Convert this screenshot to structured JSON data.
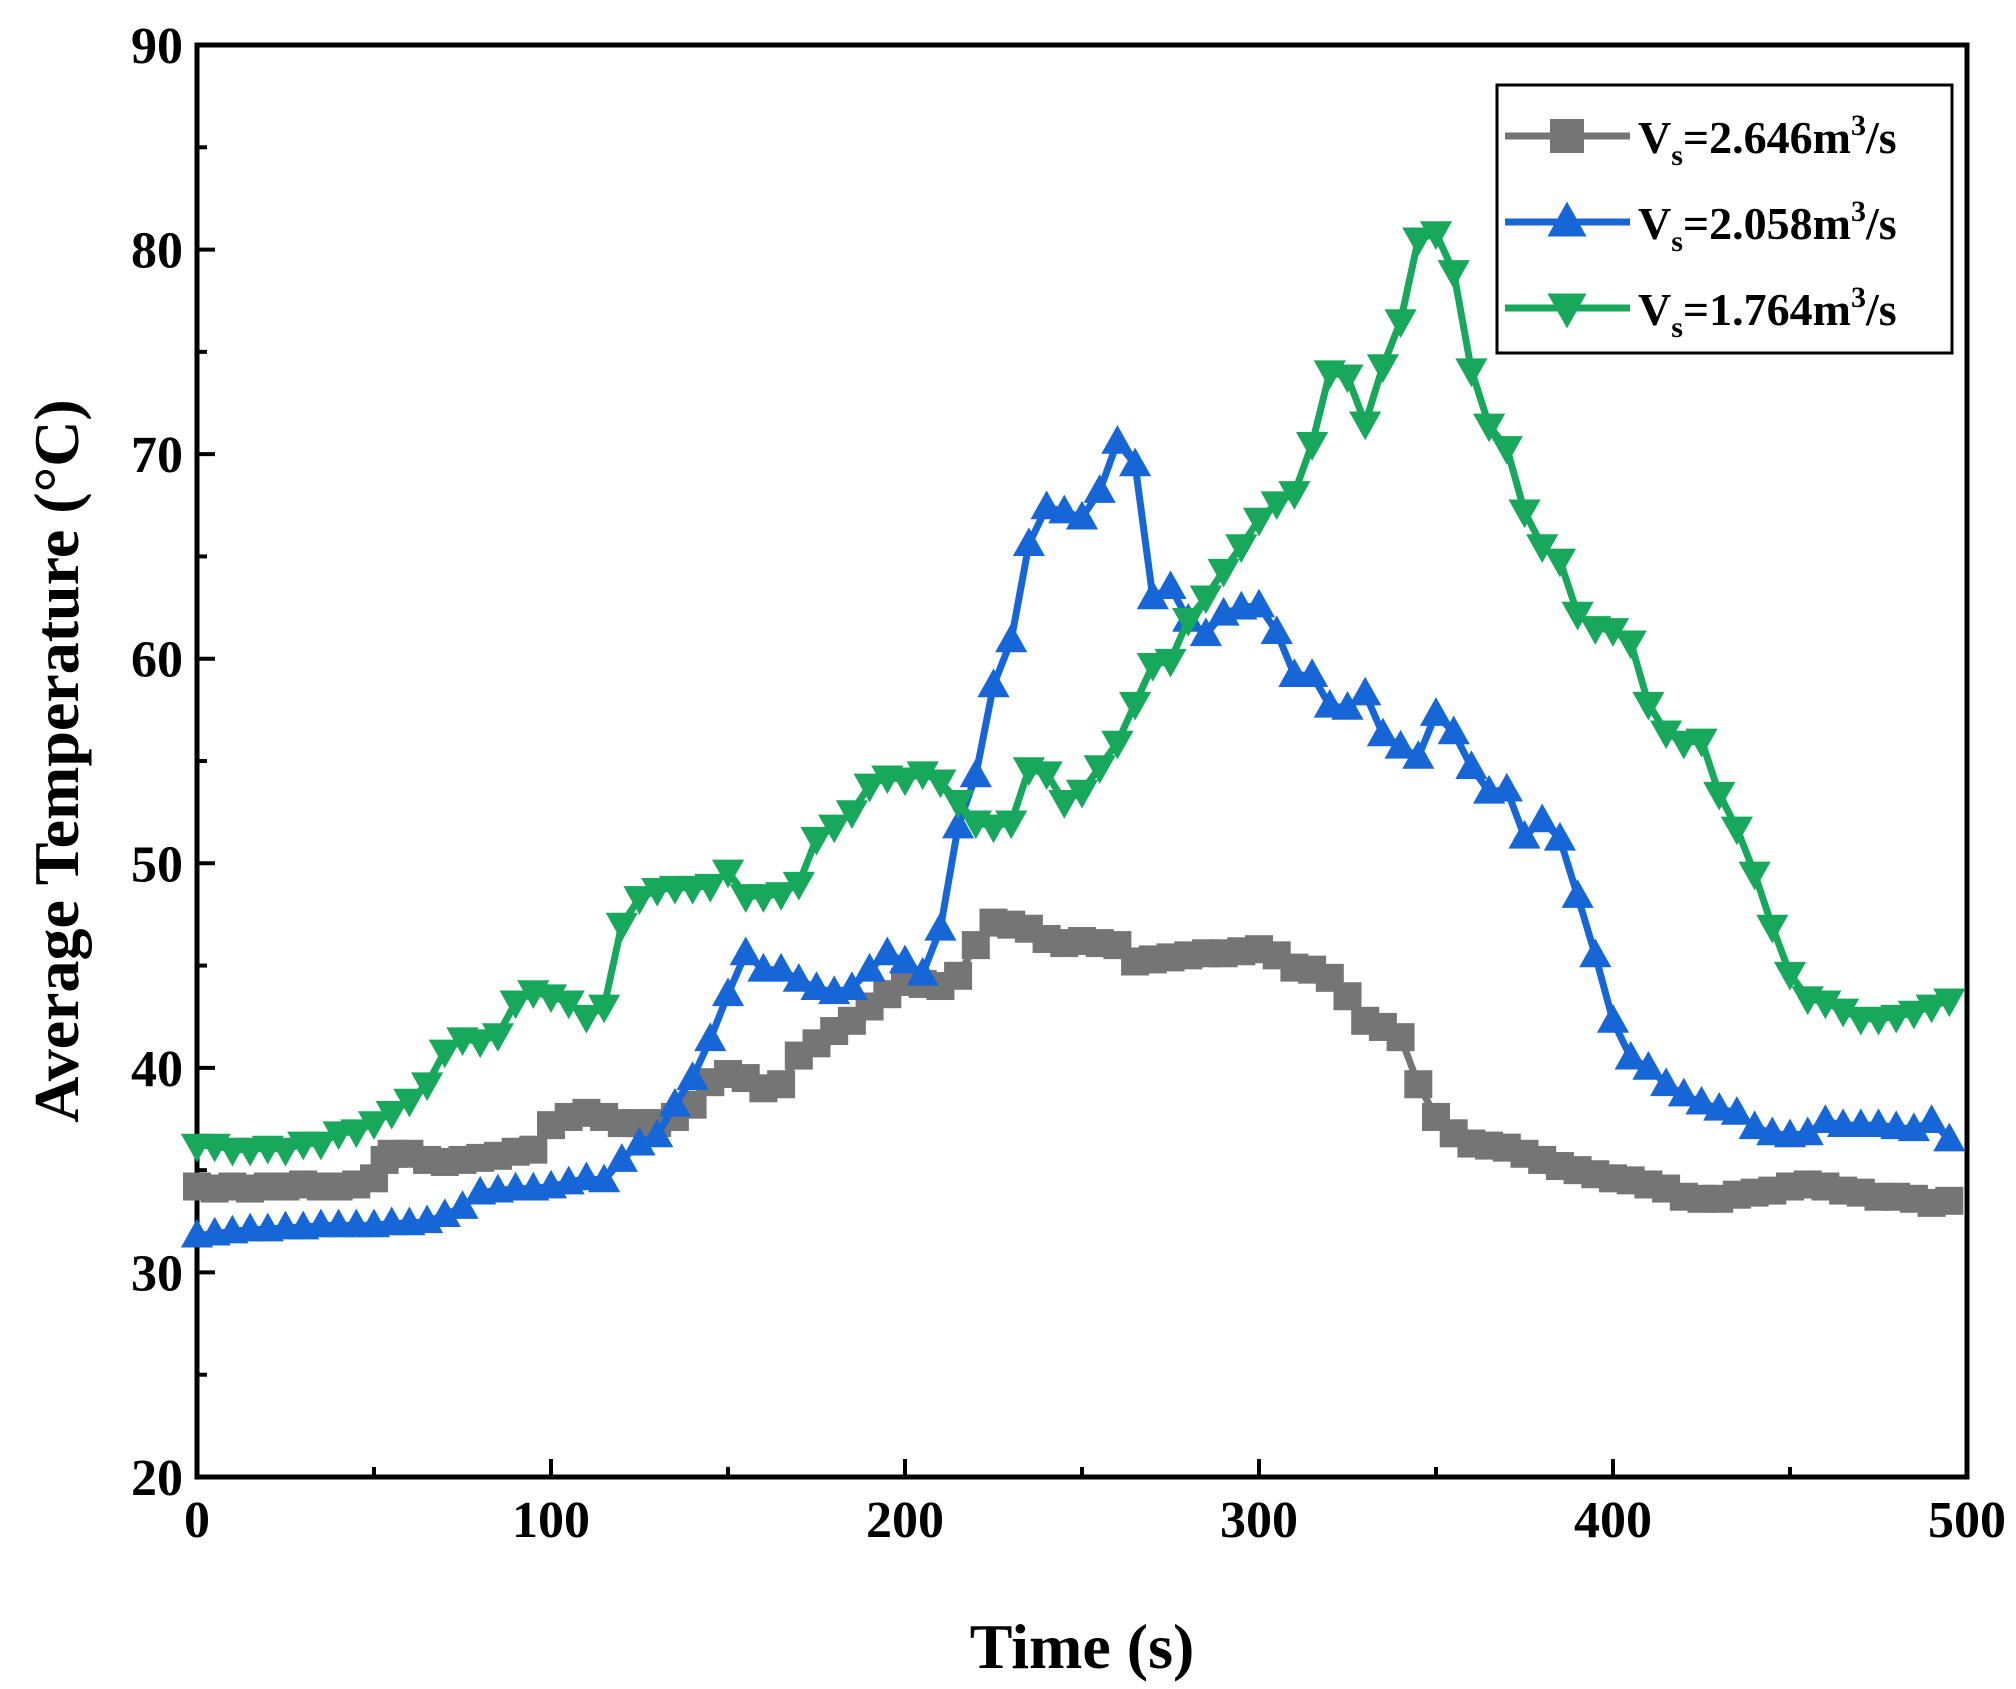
{
  "chart_data": {
    "type": "line",
    "xlabel": "Time (s)",
    "ylabel": "Average Temperature (°C)",
    "xlim": [
      0,
      500
    ],
    "ylim": [
      20,
      90
    ],
    "xticks": [
      0,
      100,
      200,
      300,
      400,
      500
    ],
    "yticks": [
      20,
      30,
      40,
      50,
      60,
      70,
      80,
      90
    ],
    "grid": false,
    "legend_position": "top-right",
    "series": [
      {
        "name_main": "V",
        "name_sub": "s",
        "name_value": "=2.646m",
        "name_sup": "3",
        "name_tail": "/s",
        "color": "#757575",
        "marker": "square",
        "points": [
          [
            0,
            34.2
          ],
          [
            5,
            34.1
          ],
          [
            10,
            34.2
          ],
          [
            15,
            34.1
          ],
          [
            20,
            34.2
          ],
          [
            25,
            34.2
          ],
          [
            30,
            34.3
          ],
          [
            35,
            34.2
          ],
          [
            40,
            34.2
          ],
          [
            45,
            34.3
          ],
          [
            50,
            34.6
          ],
          [
            53,
            35.5
          ],
          [
            55,
            35.8
          ],
          [
            60,
            35.8
          ],
          [
            65,
            35.5
          ],
          [
            70,
            35.4
          ],
          [
            75,
            35.5
          ],
          [
            80,
            35.6
          ],
          [
            85,
            35.7
          ],
          [
            90,
            35.9
          ],
          [
            95,
            36.0
          ],
          [
            100,
            37.2
          ],
          [
            105,
            37.6
          ],
          [
            110,
            37.8
          ],
          [
            115,
            37.6
          ],
          [
            120,
            37.3
          ],
          [
            125,
            37.3
          ],
          [
            130,
            37.3
          ],
          [
            135,
            37.6
          ],
          [
            140,
            38.2
          ],
          [
            145,
            39.3
          ],
          [
            150,
            39.7
          ],
          [
            155,
            39.5
          ],
          [
            160,
            39.0
          ],
          [
            165,
            39.2
          ],
          [
            170,
            40.6
          ],
          [
            175,
            41.2
          ],
          [
            180,
            41.8
          ],
          [
            185,
            42.3
          ],
          [
            190,
            43.0
          ],
          [
            195,
            43.6
          ],
          [
            200,
            44.2
          ],
          [
            205,
            44.1
          ],
          [
            210,
            44.0
          ],
          [
            215,
            44.5
          ],
          [
            220,
            46.0
          ],
          [
            225,
            47.1
          ],
          [
            230,
            47.0
          ],
          [
            235,
            46.8
          ],
          [
            240,
            46.3
          ],
          [
            245,
            46.1
          ],
          [
            250,
            46.2
          ],
          [
            255,
            46.1
          ],
          [
            260,
            46.0
          ],
          [
            265,
            45.2
          ],
          [
            270,
            45.3
          ],
          [
            275,
            45.4
          ],
          [
            280,
            45.5
          ],
          [
            285,
            45.6
          ],
          [
            290,
            45.6
          ],
          [
            295,
            45.7
          ],
          [
            300,
            45.8
          ],
          [
            305,
            45.5
          ],
          [
            310,
            44.9
          ],
          [
            315,
            44.8
          ],
          [
            320,
            44.4
          ],
          [
            325,
            43.5
          ],
          [
            330,
            42.3
          ],
          [
            335,
            42.0
          ],
          [
            340,
            41.5
          ],
          [
            345,
            39.2
          ],
          [
            350,
            37.6
          ],
          [
            355,
            36.8
          ],
          [
            360,
            36.3
          ],
          [
            365,
            36.2
          ],
          [
            370,
            36.1
          ],
          [
            375,
            35.8
          ],
          [
            380,
            35.5
          ],
          [
            385,
            35.2
          ],
          [
            390,
            35.0
          ],
          [
            395,
            34.8
          ],
          [
            400,
            34.6
          ],
          [
            405,
            34.5
          ],
          [
            410,
            34.3
          ],
          [
            415,
            34.1
          ],
          [
            420,
            33.7
          ],
          [
            425,
            33.6
          ],
          [
            430,
            33.6
          ],
          [
            435,
            33.8
          ],
          [
            440,
            33.9
          ],
          [
            445,
            34.0
          ],
          [
            450,
            34.2
          ],
          [
            455,
            34.3
          ],
          [
            460,
            34.2
          ],
          [
            465,
            34.0
          ],
          [
            470,
            33.9
          ],
          [
            475,
            33.7
          ],
          [
            480,
            33.7
          ],
          [
            485,
            33.6
          ],
          [
            490,
            33.4
          ],
          [
            495,
            33.5
          ]
        ]
      },
      {
        "name_main": "V",
        "name_sub": "s",
        "name_value": "=2.058m",
        "name_sup": "3",
        "name_tail": "/s",
        "color": "#1766d8",
        "marker": "triangle-up",
        "points": [
          [
            0,
            31.8
          ],
          [
            5,
            31.9
          ],
          [
            10,
            32.0
          ],
          [
            15,
            32.1
          ],
          [
            20,
            32.1
          ],
          [
            25,
            32.2
          ],
          [
            30,
            32.2
          ],
          [
            35,
            32.3
          ],
          [
            40,
            32.3
          ],
          [
            45,
            32.3
          ],
          [
            50,
            32.3
          ],
          [
            55,
            32.4
          ],
          [
            60,
            32.4
          ],
          [
            65,
            32.5
          ],
          [
            70,
            32.8
          ],
          [
            75,
            33.2
          ],
          [
            80,
            33.9
          ],
          [
            85,
            34.0
          ],
          [
            90,
            34.1
          ],
          [
            95,
            34.1
          ],
          [
            100,
            34.2
          ],
          [
            105,
            34.4
          ],
          [
            110,
            34.6
          ],
          [
            115,
            34.5
          ],
          [
            120,
            35.5
          ],
          [
            125,
            36.3
          ],
          [
            130,
            36.7
          ],
          [
            135,
            38.2
          ],
          [
            140,
            39.5
          ],
          [
            145,
            41.4
          ],
          [
            150,
            43.6
          ],
          [
            155,
            45.6
          ],
          [
            160,
            44.8
          ],
          [
            165,
            44.8
          ],
          [
            170,
            44.3
          ],
          [
            175,
            43.9
          ],
          [
            180,
            43.7
          ],
          [
            185,
            43.9
          ],
          [
            190,
            44.8
          ],
          [
            195,
            45.6
          ],
          [
            200,
            45.2
          ],
          [
            205,
            44.6
          ],
          [
            210,
            46.8
          ],
          [
            215,
            51.8
          ],
          [
            220,
            54.3
          ],
          [
            225,
            58.7
          ],
          [
            230,
            60.9
          ],
          [
            235,
            65.6
          ],
          [
            240,
            67.4
          ],
          [
            245,
            67.2
          ],
          [
            250,
            66.9
          ],
          [
            255,
            68.2
          ],
          [
            260,
            70.6
          ],
          [
            265,
            69.5
          ],
          [
            270,
            63.0
          ],
          [
            275,
            63.5
          ],
          [
            280,
            61.9
          ],
          [
            285,
            61.2
          ],
          [
            290,
            62.2
          ],
          [
            295,
            62.5
          ],
          [
            300,
            62.6
          ],
          [
            305,
            61.3
          ],
          [
            310,
            59.2
          ],
          [
            315,
            59.2
          ],
          [
            320,
            57.7
          ],
          [
            325,
            57.6
          ],
          [
            330,
            58.3
          ],
          [
            335,
            56.3
          ],
          [
            340,
            55.7
          ],
          [
            345,
            55.2
          ],
          [
            350,
            57.3
          ],
          [
            355,
            56.4
          ],
          [
            360,
            54.7
          ],
          [
            365,
            53.5
          ],
          [
            370,
            53.6
          ],
          [
            375,
            51.3
          ],
          [
            380,
            52.1
          ],
          [
            385,
            51.2
          ],
          [
            390,
            48.4
          ],
          [
            395,
            45.5
          ],
          [
            400,
            42.3
          ],
          [
            405,
            40.5
          ],
          [
            410,
            40.0
          ],
          [
            415,
            39.2
          ],
          [
            420,
            38.7
          ],
          [
            425,
            38.3
          ],
          [
            430,
            38.0
          ],
          [
            435,
            37.8
          ],
          [
            440,
            37.1
          ],
          [
            445,
            36.8
          ],
          [
            450,
            36.7
          ],
          [
            455,
            36.8
          ],
          [
            460,
            37.4
          ],
          [
            465,
            37.2
          ],
          [
            470,
            37.2
          ],
          [
            475,
            37.2
          ],
          [
            480,
            37.1
          ],
          [
            485,
            37.0
          ],
          [
            490,
            37.4
          ],
          [
            495,
            36.5
          ]
        ]
      },
      {
        "name_main": "V",
        "name_sub": "s",
        "name_value": "=1.764m",
        "name_sup": "3",
        "name_tail": "/s",
        "color": "#18a85c",
        "marker": "triangle-down",
        "points": [
          [
            0,
            36.2
          ],
          [
            5,
            36.2
          ],
          [
            10,
            36.0
          ],
          [
            15,
            36.0
          ],
          [
            20,
            36.1
          ],
          [
            25,
            36.0
          ],
          [
            30,
            36.3
          ],
          [
            35,
            36.3
          ],
          [
            40,
            36.8
          ],
          [
            45,
            36.9
          ],
          [
            50,
            37.3
          ],
          [
            55,
            37.8
          ],
          [
            60,
            38.4
          ],
          [
            65,
            39.2
          ],
          [
            70,
            40.8
          ],
          [
            75,
            41.4
          ],
          [
            80,
            41.3
          ],
          [
            85,
            41.6
          ],
          [
            90,
            43.2
          ],
          [
            95,
            43.7
          ],
          [
            100,
            43.5
          ],
          [
            105,
            43.2
          ],
          [
            110,
            42.5
          ],
          [
            115,
            43.0
          ],
          [
            120,
            47.0
          ],
          [
            125,
            48.3
          ],
          [
            130,
            48.7
          ],
          [
            135,
            48.8
          ],
          [
            140,
            48.8
          ],
          [
            145,
            48.9
          ],
          [
            150,
            49.6
          ],
          [
            155,
            48.4
          ],
          [
            160,
            48.4
          ],
          [
            165,
            48.5
          ],
          [
            170,
            49.0
          ],
          [
            175,
            51.2
          ],
          [
            180,
            51.8
          ],
          [
            185,
            52.5
          ],
          [
            190,
            53.8
          ],
          [
            195,
            54.2
          ],
          [
            200,
            54.1
          ],
          [
            205,
            54.4
          ],
          [
            210,
            54.0
          ],
          [
            215,
            53.0
          ],
          [
            220,
            52.0
          ],
          [
            225,
            51.8
          ],
          [
            230,
            52.0
          ],
          [
            235,
            54.6
          ],
          [
            240,
            54.4
          ],
          [
            245,
            53.0
          ],
          [
            250,
            53.5
          ],
          [
            255,
            54.7
          ],
          [
            260,
            55.9
          ],
          [
            265,
            57.8
          ],
          [
            270,
            59.7
          ],
          [
            275,
            59.9
          ],
          [
            280,
            61.9
          ],
          [
            285,
            63.0
          ],
          [
            290,
            64.3
          ],
          [
            295,
            65.5
          ],
          [
            300,
            66.8
          ],
          [
            305,
            67.6
          ],
          [
            310,
            68.1
          ],
          [
            315,
            70.5
          ],
          [
            320,
            74.0
          ],
          [
            325,
            73.8
          ],
          [
            330,
            71.5
          ],
          [
            335,
            74.3
          ],
          [
            340,
            76.5
          ],
          [
            345,
            80.5
          ],
          [
            350,
            80.8
          ],
          [
            355,
            78.9
          ],
          [
            360,
            74.1
          ],
          [
            365,
            71.4
          ],
          [
            370,
            70.3
          ],
          [
            375,
            67.2
          ],
          [
            380,
            65.5
          ],
          [
            385,
            64.8
          ],
          [
            390,
            62.2
          ],
          [
            395,
            61.5
          ],
          [
            400,
            61.4
          ],
          [
            405,
            60.8
          ],
          [
            410,
            57.8
          ],
          [
            415,
            56.4
          ],
          [
            420,
            55.9
          ],
          [
            425,
            56.0
          ],
          [
            430,
            53.4
          ],
          [
            435,
            51.7
          ],
          [
            440,
            49.5
          ],
          [
            445,
            46.9
          ],
          [
            450,
            44.6
          ],
          [
            455,
            43.4
          ],
          [
            460,
            43.2
          ],
          [
            465,
            42.8
          ],
          [
            470,
            42.4
          ],
          [
            475,
            42.4
          ],
          [
            480,
            42.5
          ],
          [
            485,
            42.7
          ],
          [
            490,
            43.0
          ],
          [
            495,
            43.3
          ]
        ]
      }
    ]
  }
}
